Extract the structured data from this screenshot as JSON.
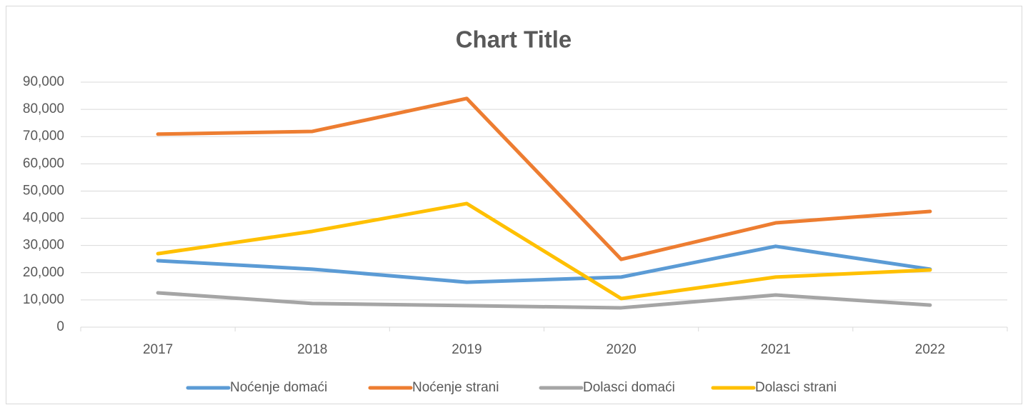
{
  "chart_data": {
    "type": "line",
    "title": "Chart Title",
    "categories": [
      "2017",
      "2018",
      "2019",
      "2020",
      "2021",
      "2022"
    ],
    "series": [
      {
        "name": "Noćenje domaći",
        "color": "#5b9bd5",
        "values": [
          24400,
          21300,
          16500,
          18400,
          29700,
          21300
        ]
      },
      {
        "name": "Noćenje strani",
        "color": "#ed7d31",
        "values": [
          70900,
          71900,
          84000,
          24900,
          38300,
          42500
        ]
      },
      {
        "name": "Dolasci domaći",
        "color": "#a5a5a5",
        "values": [
          12600,
          8700,
          7900,
          7100,
          11800,
          8100
        ]
      },
      {
        "name": "Dolasci strani",
        "color": "#ffc000",
        "values": [
          27000,
          35200,
          45400,
          10500,
          18400,
          21000
        ]
      }
    ],
    "ylim": [
      0,
      90000
    ],
    "yticks": [
      0,
      {
        "value": 10000,
        "label": "10,000"
      },
      {
        "value": 20000,
        "label": "20,000"
      },
      {
        "value": 30000,
        "label": "30,000"
      },
      {
        "value": 40000,
        "label": "40,000"
      },
      {
        "value": 50000,
        "label": "50,000"
      },
      {
        "value": 60000,
        "label": "60,000"
      },
      {
        "value": 70000,
        "label": "70,000"
      },
      {
        "value": 80000,
        "label": "80,000"
      },
      {
        "value": 90000,
        "label": "90,000"
      }
    ],
    "grid": true,
    "legend": "bottom"
  }
}
